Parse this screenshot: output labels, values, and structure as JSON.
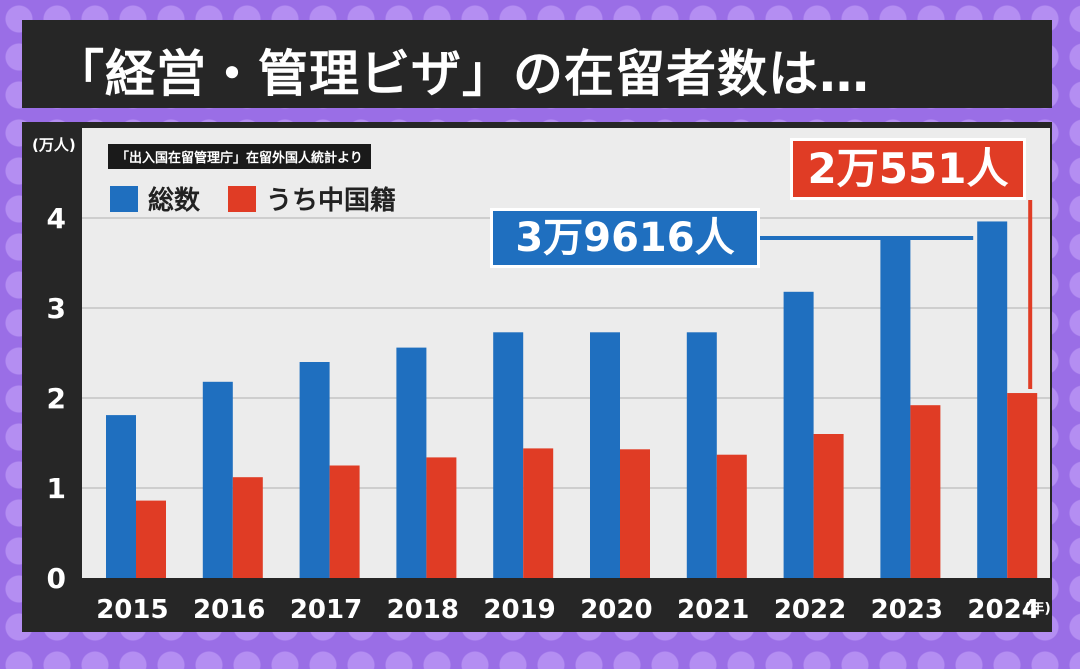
{
  "title": "「経営・管理ビザ」の在留者数は…",
  "source": "「出入国在留管理庁」在留外国人統計より",
  "y_unit": "(万人)",
  "x_unit": "(年)",
  "legend": {
    "total": "総数",
    "china": "うち中国籍"
  },
  "callouts": {
    "total_2024": "3万9616人",
    "china_2024": "2万551人"
  },
  "colors": {
    "total": "#1f6fbf",
    "china": "#e03c25",
    "plot_bg": "#ececec",
    "frame": "#262626",
    "purple": "#9a6ee6"
  },
  "chart_data": {
    "type": "bar",
    "categories": [
      "2015",
      "2016",
      "2017",
      "2018",
      "2019",
      "2020",
      "2021",
      "2022",
      "2023",
      "2024"
    ],
    "series": [
      {
        "name": "総数",
        "values": [
          1.81,
          2.18,
          2.4,
          2.56,
          2.73,
          2.73,
          2.73,
          3.18,
          3.76,
          3.9616
        ]
      },
      {
        "name": "うち中国籍",
        "values": [
          0.86,
          1.12,
          1.25,
          1.34,
          1.44,
          1.43,
          1.37,
          1.6,
          1.92,
          2.0551
        ]
      }
    ],
    "y_ticks": [
      "0",
      "1",
      "2",
      "3",
      "4"
    ],
    "ylim": [
      0,
      5.0
    ],
    "ylabel": "(万人)",
    "xlabel": "(年)",
    "grid": true,
    "legend_position": "top-left"
  }
}
